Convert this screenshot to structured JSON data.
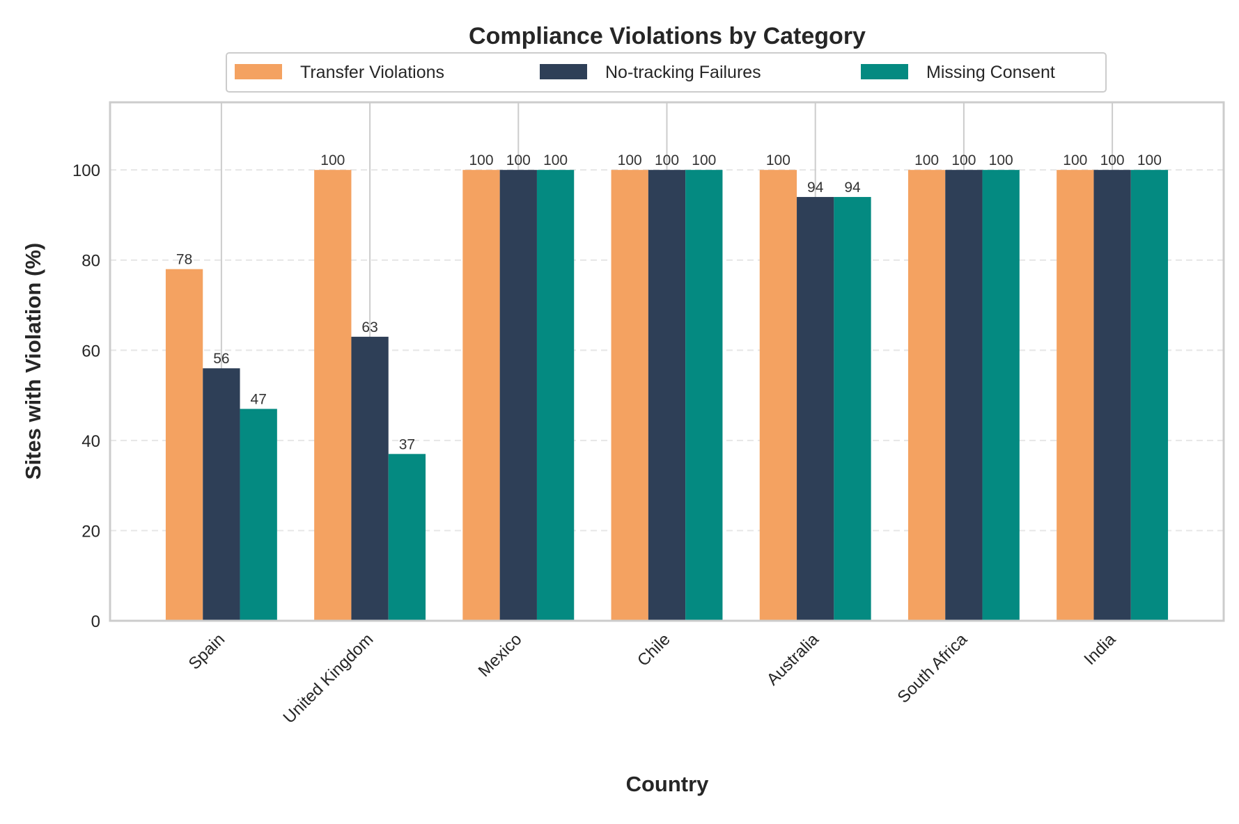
{
  "chart_data": {
    "type": "bar",
    "title": "Compliance Violations by Category",
    "xlabel": "Country",
    "ylabel": "Sites with Violation (%)",
    "categories": [
      "Spain",
      "United Kingdom",
      "Mexico",
      "Chile",
      "Australia",
      "South Africa",
      "India"
    ],
    "series": [
      {
        "name": "Transfer Violations",
        "color": "#F4A261",
        "values": [
          78,
          100,
          100,
          100,
          100,
          100,
          100
        ]
      },
      {
        "name": "No-tracking Failures",
        "color": "#2E3F57",
        "values": [
          56,
          63,
          100,
          100,
          94,
          100,
          100
        ]
      },
      {
        "name": "Missing Consent",
        "color": "#048A81",
        "values": [
          47,
          37,
          100,
          100,
          94,
          100,
          100
        ]
      }
    ],
    "data_labels": [
      [
        "78",
        "100",
        "100",
        "100",
        "100",
        "100",
        "100"
      ],
      [
        "56",
        "63",
        "100",
        "100",
        "94",
        "100",
        "100"
      ],
      [
        "47",
        "37",
        "100",
        "100",
        "94",
        "100",
        "100"
      ]
    ],
    "yticks": [
      0,
      20,
      40,
      60,
      80,
      100
    ],
    "ytick_labels": [
      "0",
      "20",
      "40",
      "60",
      "80",
      "100"
    ],
    "ylim": [
      0,
      115
    ],
    "grid": {
      "horizontal": "dashed",
      "vertical": "solid"
    },
    "legend_position": "top-center"
  }
}
